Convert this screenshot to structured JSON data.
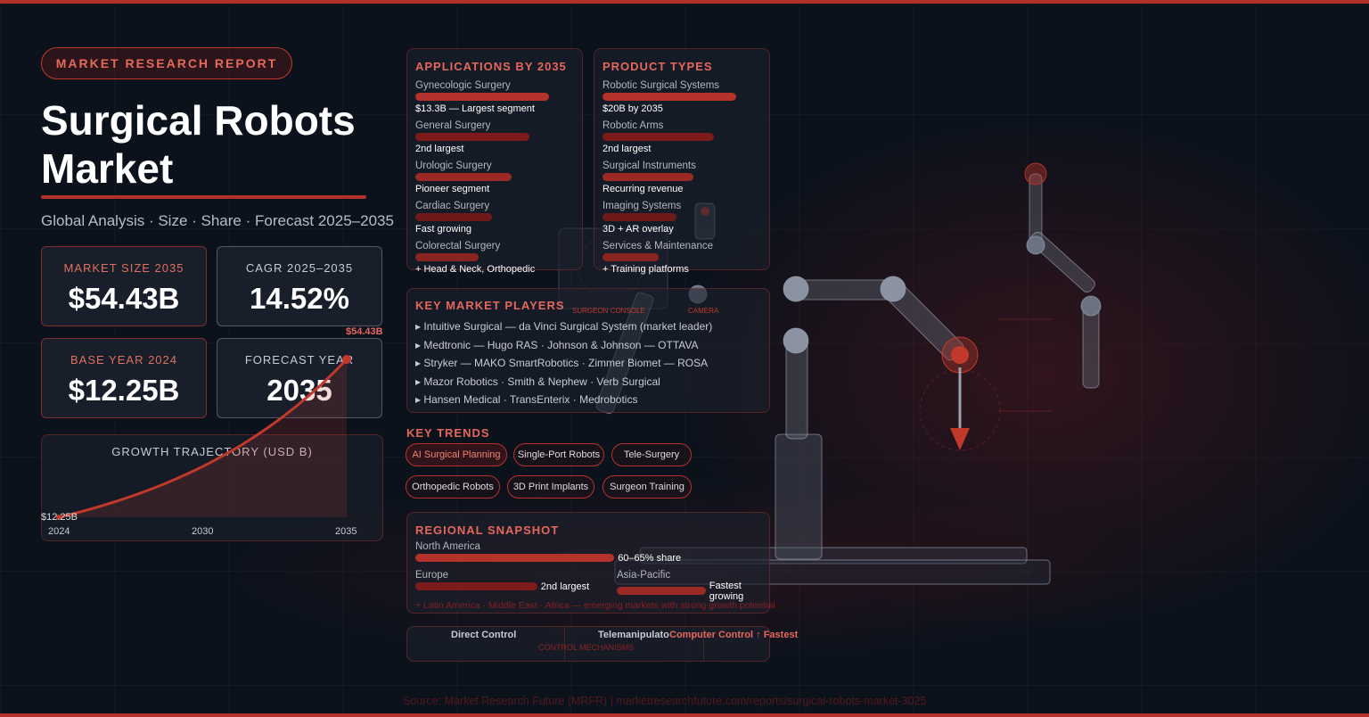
{
  "header": {
    "badge": "MARKET RESEARCH REPORT",
    "title": "Surgical Robots Market",
    "subtitle": "Global Analysis · Size · Share · Forecast 2025–2035"
  },
  "kpis": [
    {
      "label": "MARKET SIZE 2035",
      "value": "$54.43B"
    },
    {
      "label": "CAGR 2025–2035",
      "value": "14.52%"
    },
    {
      "label": "BASE YEAR 2024",
      "value": "$12.25B"
    },
    {
      "label": "FORECAST YEAR",
      "value": "2035"
    }
  ],
  "chart_data": {
    "type": "line",
    "title": "GROWTH TRAJECTORY (USD B)",
    "x": [
      2024,
      2035
    ],
    "series": [
      {
        "values": [
          12.25,
          54.43
        ]
      }
    ],
    "start_label": "$12.25B",
    "end_label": "$54.43B",
    "xticks": [
      "2024",
      "2030",
      "2035"
    ],
    "growth": "CAGR 14.52%",
    "color": "#c0392b"
  },
  "applications": {
    "title": "APPLICATIONS BY 2035",
    "items": [
      {
        "name": "Gynecologic Surgery",
        "desc": "$13.3B — Largest segment",
        "level": 1.0
      },
      {
        "name": "General Surgery",
        "desc": "2nd largest",
        "level": 0.85
      },
      {
        "name": "Urologic Surgery",
        "desc": "Pioneer segment",
        "level": 0.72
      },
      {
        "name": "Cardiac Surgery",
        "desc": "Fast growing",
        "level": 0.57
      },
      {
        "name": "Colorectal Surgery",
        "desc": "+ Head & Neck, Orthopedic",
        "level": 0.47
      }
    ]
  },
  "products": {
    "title": "PRODUCT TYPES",
    "items": [
      {
        "name": "Robotic Surgical Systems",
        "desc": "$20B by 2035",
        "level": 1.0
      },
      {
        "name": "Robotic Arms",
        "desc": "2nd largest",
        "level": 0.83
      },
      {
        "name": "Surgical Instruments",
        "desc": "Recurring revenue",
        "level": 0.68
      },
      {
        "name": "Imaging Systems",
        "desc": "3D + AR overlay",
        "level": 0.55
      },
      {
        "name": "Services & Maintenance",
        "desc": "+ Training platforms",
        "level": 0.42
      }
    ]
  },
  "players": {
    "title": "KEY MARKET PLAYERS",
    "items": [
      "▸ Intuitive Surgical — da Vinci Surgical System (market leader)",
      "▸ Medtronic — Hugo RAS · Johnson & Johnson — OTTAVA",
      "▸ Stryker — MAKO SmartRobotics · Zimmer Biomet — ROSA",
      "▸ Mazor Robotics · Smith & Nephew · Verb Surgical",
      "▸ Hansen Medical · TransEnterix · Medrobotics"
    ]
  },
  "trends": {
    "title": "KEY TRENDS",
    "items": [
      "AI Surgical Planning",
      "Single-Port Robots",
      "Tele-Surgery",
      "Orthopedic Robots",
      "3D Print Implants",
      "Surgeon Training"
    ]
  },
  "regional": {
    "title": "REGIONAL SNAPSHOT",
    "items": [
      {
        "name": "North America",
        "desc": "60–65% share",
        "level": 0.62
      },
      {
        "name": "Europe",
        "desc": "2nd largest",
        "level": 0.38
      },
      {
        "name": "Asia-Pacific",
        "desc": "Fastest growing",
        "level": 0.32
      }
    ],
    "note": "+ Latin America · Middle East · Africa — emerging markets with strong growth potential"
  },
  "control": {
    "items": [
      "Direct Control",
      "Telemanipulator",
      "Computer Control ↑ Fastest"
    ],
    "label": "CONTROL MECHANISMS"
  },
  "illustration": {
    "labels": [
      "SURGEON CONSOLE",
      "CAMERA"
    ]
  },
  "source": "Source: Market Research Future (MRFR) | marketresearchfuture.com/reports/surgical-robots-market-3025",
  "colors": {
    "accent": "#c0392b",
    "background": "#0c121c"
  }
}
